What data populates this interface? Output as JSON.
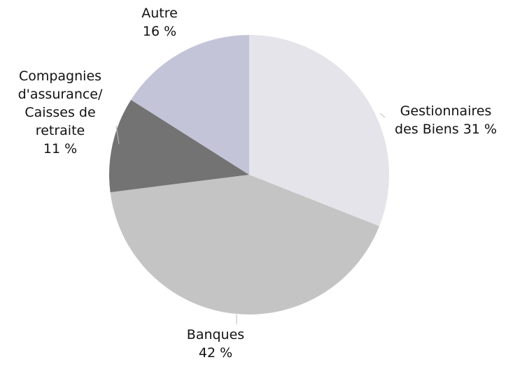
{
  "chart_data": {
    "type": "pie",
    "categories": [
      "Gestionnaires des Biens",
      "Banques",
      "Compagnies d'assurance/ Caisses de retraite",
      "Autre"
    ],
    "values": [
      31,
      42,
      11,
      16
    ],
    "value_labels": [
      "31 %",
      "42 %",
      "11 %",
      "16 %"
    ],
    "colors": [
      "#e4e4ea",
      "#c4c4c4",
      "#737373",
      "#c4c4d8"
    ]
  }
}
